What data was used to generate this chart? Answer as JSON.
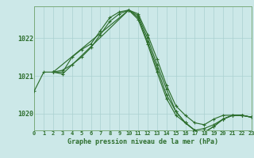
{
  "background_color": "#cce8e8",
  "grid_color": "#aad0d0",
  "line_color": "#2d6e2d",
  "title": "Graphe pression niveau de la mer (hPa)",
  "xlim": [
    0,
    23
  ],
  "ylim": [
    1019.55,
    1022.85
  ],
  "yticks": [
    1020,
    1021,
    1022
  ],
  "xticks": [
    0,
    1,
    2,
    3,
    4,
    5,
    6,
    7,
    8,
    9,
    10,
    11,
    12,
    13,
    14,
    15,
    16,
    17,
    18,
    19,
    20,
    21,
    22,
    23
  ],
  "series": [
    {
      "x": [
        0,
        1,
        2,
        3,
        4,
        5,
        6,
        7,
        8,
        9,
        10,
        11,
        12,
        13,
        14,
        15,
        16,
        17,
        18,
        19,
        20,
        21,
        22,
        23
      ],
      "y": [
        1020.6,
        1021.1,
        1021.1,
        1021.1,
        1021.5,
        1021.7,
        1021.85,
        1022.2,
        1022.55,
        1022.7,
        1022.75,
        1022.65,
        1022.1,
        1021.45,
        1020.75,
        1020.2,
        1019.95,
        1019.75,
        1019.7,
        1019.85,
        1019.95,
        1019.95,
        1019.95,
        1019.9
      ]
    },
    {
      "x": [
        2,
        3,
        4,
        5,
        6,
        7,
        8,
        9,
        10,
        11,
        12,
        13,
        14,
        15,
        16,
        17,
        18,
        19,
        20,
        21,
        22,
        23
      ],
      "y": [
        1021.1,
        1021.15,
        1021.3,
        1021.5,
        1021.75,
        1022.1,
        1022.45,
        1022.65,
        1022.75,
        1022.6,
        1022.0,
        1021.3,
        1020.65,
        1020.05,
        1019.75,
        1019.55,
        1019.6,
        1019.7,
        1019.85,
        1019.95,
        1019.95,
        1019.9
      ]
    },
    {
      "x": [
        2,
        3,
        10,
        11,
        12,
        13,
        14,
        15,
        16,
        17,
        18,
        19,
        20,
        21,
        22,
        23
      ],
      "y": [
        1021.1,
        1021.05,
        1022.75,
        1022.55,
        1021.9,
        1021.2,
        1020.5,
        1020.05,
        1019.75,
        1019.55,
        1019.5,
        1019.65,
        1019.85,
        1019.95,
        1019.95,
        1019.9
      ]
    },
    {
      "x": [
        2,
        10,
        11,
        12,
        13,
        14,
        15,
        16,
        17,
        18,
        19,
        20,
        21,
        22,
        23
      ],
      "y": [
        1021.1,
        1022.75,
        1022.5,
        1021.85,
        1021.1,
        1020.4,
        1019.95,
        1019.75,
        1019.55,
        1019.5,
        1019.65,
        1019.85,
        1019.95,
        1019.95,
        1019.9
      ]
    }
  ]
}
